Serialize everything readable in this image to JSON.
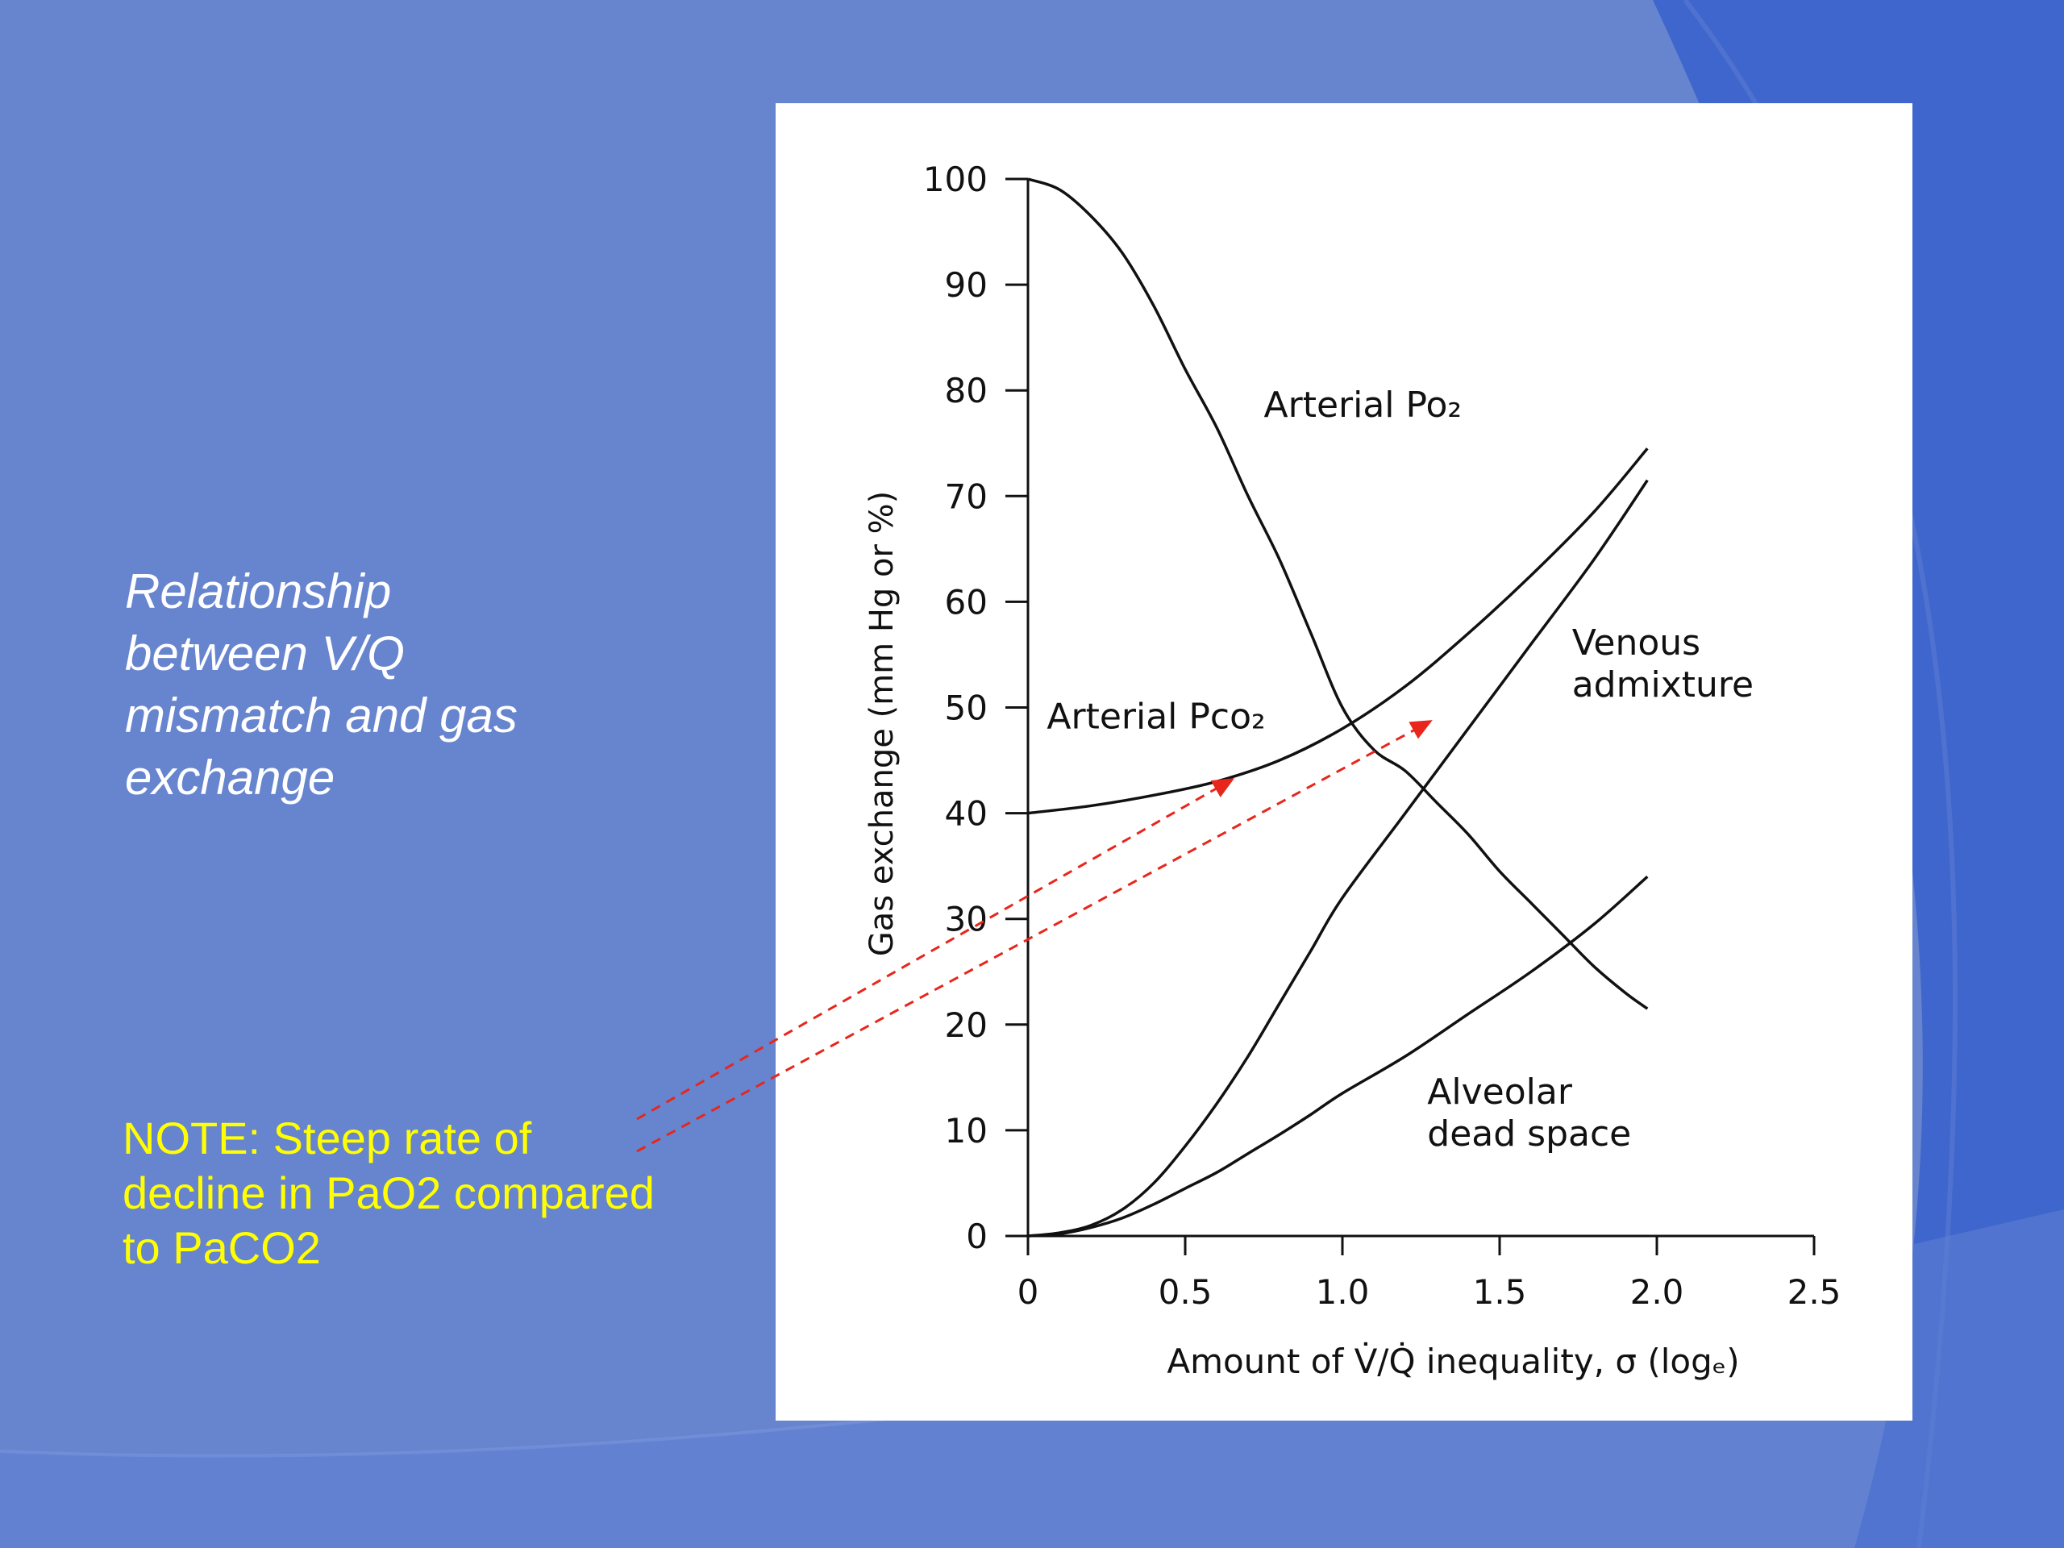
{
  "slide": {
    "caption_lines": [
      "Relationship",
      "between V/Q",
      "mismatch and gas",
      "exchange"
    ],
    "note_lines": [
      "NOTE: Steep rate of",
      "decline in PaO2 compared",
      "to PaCO2"
    ],
    "colors": {
      "background": "#6784cf",
      "caption": "#ffffff",
      "note": "#ffff00",
      "arrow": "#e8261c"
    }
  },
  "chart_data": {
    "type": "line",
    "ylabel": "Gas exchange (mm Hg or %)",
    "xlabel": "Amount of V̇/Q̇ inequality, σ (logₑ)",
    "xlim": [
      0,
      2.5
    ],
    "ylim": [
      0,
      100
    ],
    "x_ticks": [
      "0",
      "0.5",
      "1.0",
      "1.5",
      "2.0",
      "2.5"
    ],
    "x_tick_values": [
      0,
      0.5,
      1.0,
      1.5,
      2.0,
      2.5
    ],
    "y_ticks": [
      "0",
      "10",
      "20",
      "30",
      "40",
      "50",
      "60",
      "70",
      "80",
      "90",
      "100"
    ],
    "y_tick_values": [
      0,
      10,
      20,
      30,
      40,
      50,
      60,
      70,
      80,
      90,
      100
    ],
    "grid": false,
    "legend": "none",
    "series": [
      {
        "name": "Arterial Po₂",
        "x": [
          0,
          0.1,
          0.2,
          0.3,
          0.4,
          0.5,
          0.6,
          0.7,
          0.8,
          0.9,
          1.0,
          1.1,
          1.2,
          1.3,
          1.4,
          1.5,
          1.6,
          1.7,
          1.8,
          1.9,
          1.97
        ],
        "y": [
          100,
          99,
          96.5,
          93,
          88,
          82,
          76.5,
          70,
          64,
          57,
          50,
          46,
          44,
          41,
          38,
          34.5,
          31.5,
          28.5,
          25.5,
          23,
          21.5
        ]
      },
      {
        "name": "Arterial Pco₂",
        "x": [
          0,
          0.2,
          0.4,
          0.6,
          0.8,
          1.0,
          1.2,
          1.4,
          1.6,
          1.8,
          1.97
        ],
        "y": [
          40,
          40.7,
          41.7,
          43,
          45,
          48,
          52,
          57,
          62.5,
          68.5,
          74.5
        ]
      },
      {
        "name": "Venous admixture",
        "x": [
          0,
          0.1,
          0.2,
          0.3,
          0.4,
          0.5,
          0.6,
          0.7,
          0.8,
          0.9,
          1.0,
          1.2,
          1.4,
          1.6,
          1.8,
          1.97
        ],
        "y": [
          0,
          0.3,
          1,
          2.5,
          5,
          8.5,
          12.5,
          17,
          22,
          27,
          32,
          40,
          48,
          56,
          64,
          71.5
        ]
      },
      {
        "name": "Alveolar dead space",
        "x": [
          0,
          0.1,
          0.2,
          0.3,
          0.4,
          0.5,
          0.6,
          0.7,
          0.8,
          0.9,
          1.0,
          1.2,
          1.4,
          1.6,
          1.8,
          1.97
        ],
        "y": [
          0,
          0.2,
          0.8,
          1.7,
          3,
          4.5,
          6,
          7.8,
          9.6,
          11.5,
          13.5,
          17,
          21,
          25,
          29.5,
          34
        ]
      }
    ],
    "annotations": [
      {
        "label_lines": [
          "Arterial Po₂"
        ],
        "x": 0.75,
        "y": 77.5
      },
      {
        "label_lines": [
          "Arterial Pco₂"
        ],
        "x": 0.06,
        "y": 48
      },
      {
        "label_lines": [
          "Venous",
          "admixture"
        ],
        "x": 1.73,
        "y": 55
      },
      {
        "label_lines": [
          "Alveolar",
          "dead space"
        ],
        "x": 1.27,
        "y": 12.5
      }
    ],
    "arrow_targets": [
      {
        "x": 0.65,
        "y": 43.2
      },
      {
        "x": 1.28,
        "y": 48.7
      }
    ]
  }
}
